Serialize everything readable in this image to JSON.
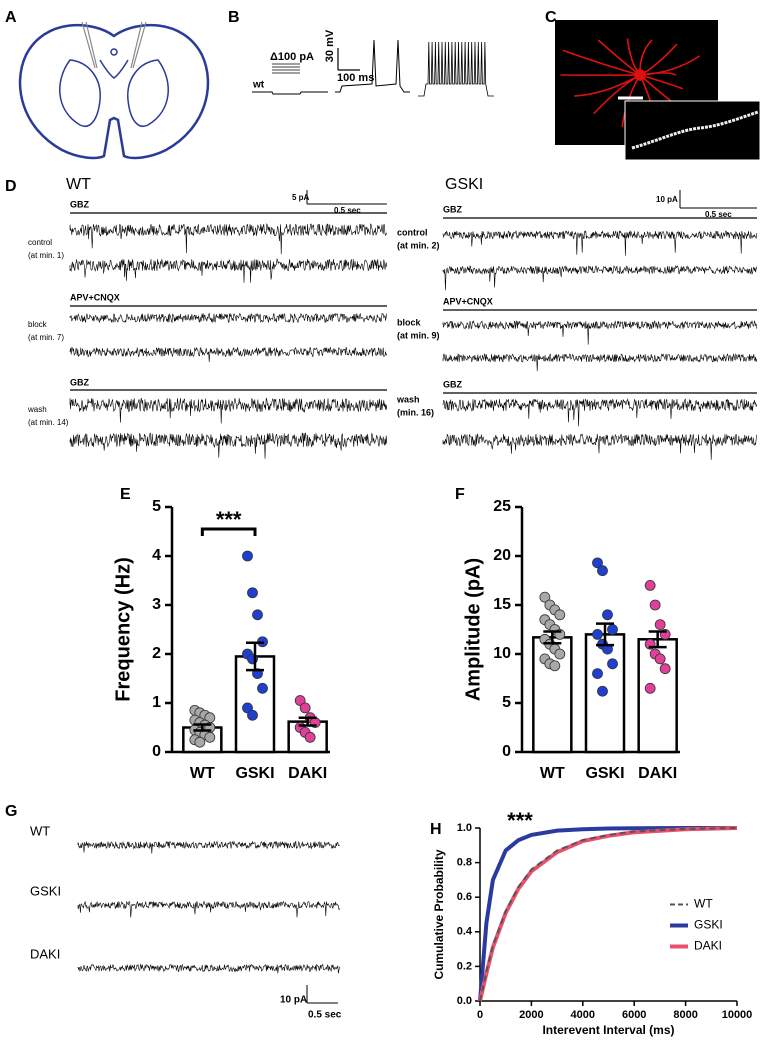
{
  "panel_labels": [
    "A",
    "B",
    "C",
    "D",
    "E",
    "F",
    "G",
    "H"
  ],
  "panel_b": {
    "stimulus": "Δ100 pA",
    "genotype": "wt",
    "scale_voltage": "30 mV",
    "scale_time": "100 ms"
  },
  "panel_d": {
    "wt": {
      "title": "WT",
      "scale_current": "5 pA",
      "scale_time": "0.5 sec",
      "conditions": [
        {
          "drug": "GBZ",
          "label": "control",
          "time": "(at min. 1)"
        },
        {
          "drug": "APV+CNQX",
          "label": "block",
          "time": "(at min. 7)"
        },
        {
          "drug": "GBZ",
          "label": "wash",
          "time": "(at min. 14)"
        }
      ]
    },
    "gski": {
      "title": "GSKI",
      "scale_current": "10 pA",
      "scale_time": "0.5 sec",
      "conditions": [
        {
          "drug": "GBZ",
          "label": "control",
          "time": "(at min. 2)"
        },
        {
          "drug": "APV+CNQX",
          "label": "block",
          "time": "(at min. 9)"
        },
        {
          "drug": "GBZ",
          "label": "wash",
          "time": "(min. 16)"
        }
      ]
    }
  },
  "panel_g": {
    "genotypes": [
      "WT",
      "GSKI",
      "DAKI"
    ],
    "scale_current": "10 pA",
    "scale_time": "0.5 sec"
  },
  "chart_data": [
    {
      "type": "bar",
      "ylabel": "Frequency (Hz)",
      "categories": [
        "WT",
        "GSKI",
        "DAKI"
      ],
      "values": [
        0.5,
        1.95,
        0.62
      ],
      "errors": [
        0.06,
        0.28,
        0.08
      ],
      "points": [
        [
          0.85,
          0.8,
          0.75,
          0.7,
          0.65,
          0.6,
          0.55,
          0.5,
          0.45,
          0.4,
          0.35,
          0.3,
          0.25,
          0.2
        ],
        [
          4.0,
          3.25,
          2.8,
          2.25,
          2.0,
          1.9,
          1.6,
          1.3,
          0.9,
          0.75
        ],
        [
          1.05,
          0.9,
          0.7,
          0.6,
          0.5,
          0.4,
          0.3
        ]
      ],
      "point_colors": [
        "#a8a8a8",
        "#1f3fd0",
        "#e0409a"
      ],
      "annotation": "***",
      "ylim": [
        0,
        5
      ],
      "yticks": [
        0,
        1,
        2,
        3,
        4,
        5
      ]
    },
    {
      "type": "bar",
      "ylabel": "Amplitude (pA)",
      "categories": [
        "WT",
        "GSKI",
        "DAKI"
      ],
      "values": [
        11.7,
        12.0,
        11.5
      ],
      "errors": [
        0.6,
        1.1,
        0.8
      ],
      "points": [
        [
          15.8,
          15.0,
          14.5,
          14.0,
          13.5,
          13.0,
          12.5,
          12.0,
          11.5,
          11.0,
          10.5,
          10.0,
          9.5,
          9.0,
          8.8
        ],
        [
          19.3,
          18.5,
          14.0,
          12.5,
          12.0,
          11.0,
          10.5,
          9.0,
          8.0,
          6.2
        ],
        [
          17.0,
          15.0,
          13.0,
          12.0,
          11.0,
          10.0,
          9.5,
          8.5,
          6.5
        ]
      ],
      "point_colors": [
        "#a8a8a8",
        "#1f3fd0",
        "#e0409a"
      ],
      "ylim": [
        0,
        25
      ],
      "yticks": [
        0,
        5,
        10,
        15,
        20,
        25
      ]
    },
    {
      "type": "line",
      "xlabel": "Interevent Interval (ms)",
      "ylabel": "Cumulative Probability",
      "x": [
        0,
        250,
        500,
        1000,
        1500,
        2000,
        3000,
        4000,
        5000,
        6000,
        8000,
        10000
      ],
      "series": [
        {
          "name": "WT",
          "color": "#555555",
          "style": "dashed",
          "values": [
            0,
            0.17,
            0.32,
            0.52,
            0.66,
            0.76,
            0.87,
            0.93,
            0.96,
            0.98,
            0.995,
            1
          ]
        },
        {
          "name": "GSKI",
          "color": "#2b3a9e",
          "style": "solid",
          "values": [
            0,
            0.45,
            0.7,
            0.87,
            0.93,
            0.96,
            0.985,
            0.993,
            0.997,
            0.999,
            1,
            1
          ]
        },
        {
          "name": "DAKI",
          "color": "#e8506e",
          "style": "solid",
          "values": [
            0,
            0.16,
            0.31,
            0.51,
            0.65,
            0.75,
            0.86,
            0.925,
            0.955,
            0.975,
            0.993,
            1
          ]
        }
      ],
      "annotation": "***",
      "legend": "right",
      "xlim": [
        0,
        10000
      ],
      "xticks": [
        0,
        2000,
        4000,
        6000,
        8000,
        10000
      ],
      "ylim": [
        0,
        1
      ],
      "yticks": [
        {
          "value": 0,
          "label": "0.0"
        },
        0.2,
        0.4,
        0.6,
        0.8,
        {
          "value": 1,
          "label": "1.0"
        }
      ]
    }
  ]
}
